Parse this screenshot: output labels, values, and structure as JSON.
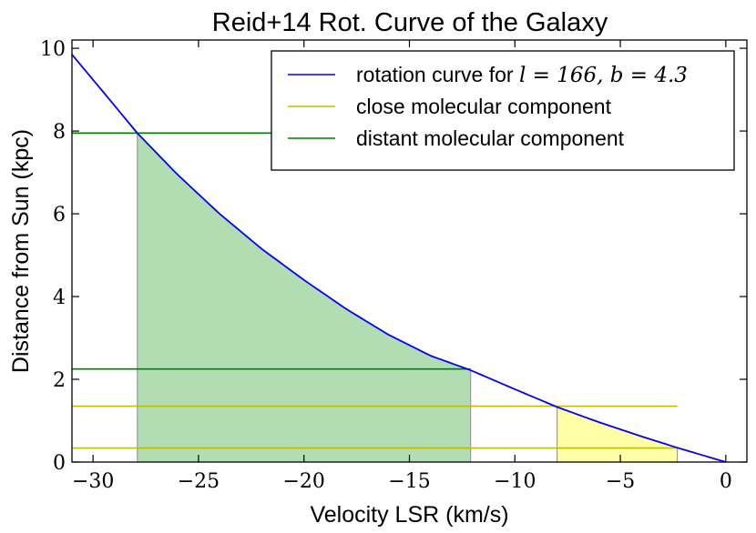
{
  "chart_data": {
    "type": "line",
    "title": "Reid+14 Rot. Curve of the Galaxy",
    "xlabel": "Velocity LSR (km/s)",
    "ylabel": "Distance from Sun (kpc)",
    "xlim": [
      -31,
      1
    ],
    "ylim": [
      0,
      10.2
    ],
    "xticks": [
      -30,
      -25,
      -20,
      -15,
      -10,
      -5,
      0
    ],
    "xtick_labels": [
      "−30",
      "−25",
      "−20",
      "−15",
      "−10",
      "−5",
      "0"
    ],
    "yticks": [
      0,
      2,
      4,
      6,
      8,
      10
    ],
    "ytick_labels": [
      "0",
      "2",
      "4",
      "6",
      "8",
      "10"
    ],
    "legend_position": "top-right",
    "series": [
      {
        "name": "rotation curve",
        "legend_prefix": "rotation curve for ",
        "legend_math": "l = 166, b = 4.3",
        "color": "#0000ff",
        "x": [
          -31,
          -29.2,
          -27.9,
          -26,
          -24,
          -22,
          -20,
          -18,
          -16,
          -14,
          -12.1,
          -10,
          -8,
          -6,
          -4,
          -2.2,
          -1,
          0
        ],
        "y": [
          9.85,
          8.75,
          7.95,
          6.95,
          6.0,
          5.15,
          4.4,
          3.7,
          3.08,
          2.57,
          2.22,
          1.76,
          1.33,
          0.96,
          0.62,
          0.33,
          0.15,
          0.0
        ]
      },
      {
        "name": "close molecular component",
        "color": "#bfbf00",
        "fill_color": "#ffff99",
        "velocity_range": [
          -8.0,
          -2.3
        ],
        "distance_range": [
          0.34,
          1.35
        ]
      },
      {
        "name": "distant molecular component",
        "color": "#008000",
        "fill_color": "#a5d6a5",
        "velocity_range": [
          -27.9,
          -12.1
        ],
        "distance_range": [
          2.25,
          7.95
        ]
      }
    ]
  }
}
